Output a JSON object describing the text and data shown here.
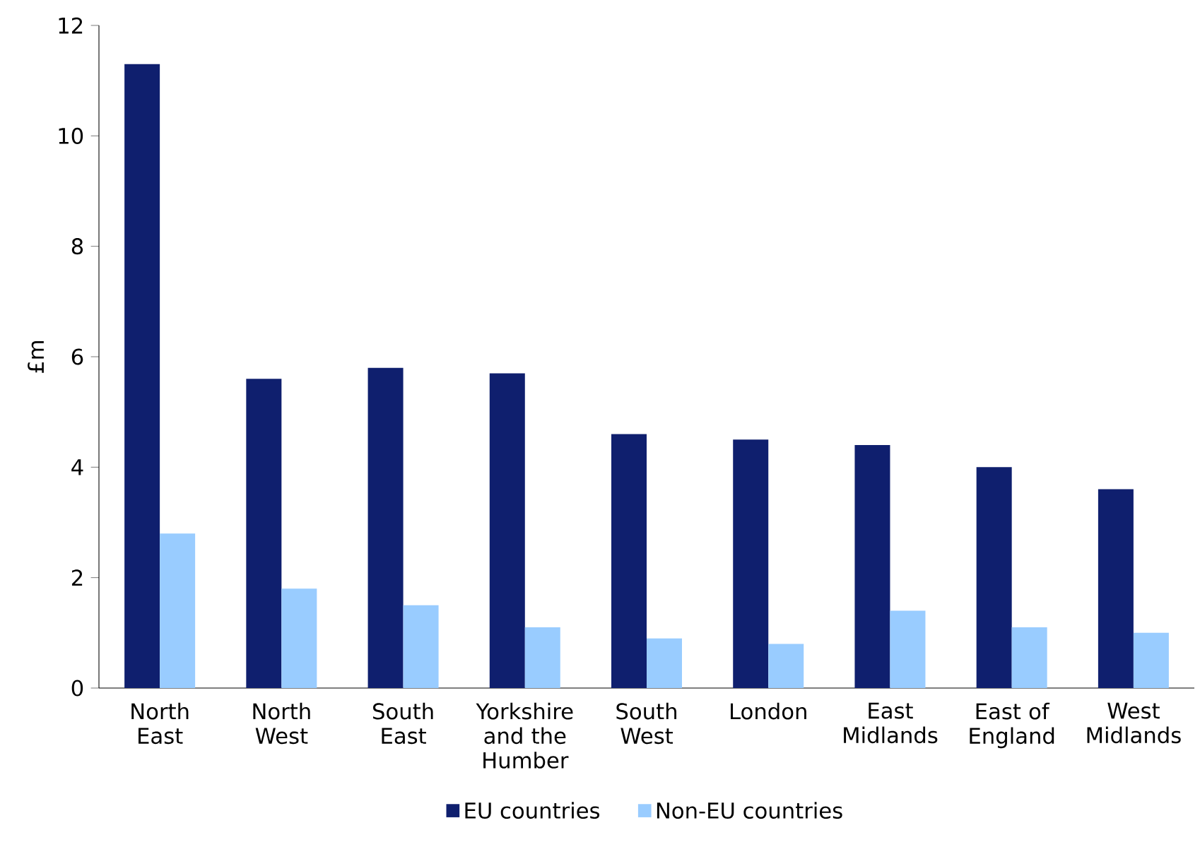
{
  "chart_data": {
    "type": "bar",
    "ylabel": "£m",
    "categories": [
      "North East",
      "North West",
      "South East",
      "Yorkshire and the Humber",
      "South West",
      "London",
      "East Midlands",
      "East of England",
      "West Midlands"
    ],
    "series": [
      {
        "name": "EU countries",
        "color": "#0f1f6e",
        "values": [
          11.3,
          5.6,
          5.8,
          5.7,
          4.6,
          4.5,
          4.4,
          4.0,
          3.6
        ]
      },
      {
        "name": "Non-EU countries",
        "color": "#99ccff",
        "values": [
          2.8,
          1.8,
          1.5,
          1.1,
          0.9,
          0.8,
          1.4,
          1.1,
          1.0
        ]
      }
    ],
    "ylim": [
      0,
      12
    ],
    "yticks": [
      0,
      2,
      4,
      6,
      8,
      10,
      12
    ],
    "grid": false,
    "legend": "bottom"
  }
}
